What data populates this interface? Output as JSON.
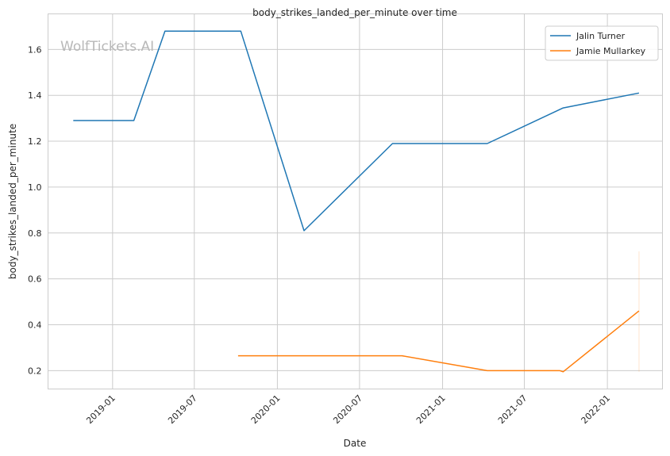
{
  "chart_data": {
    "type": "line",
    "title": "body_strikes_landed_per_minute over time",
    "xlabel": "Date",
    "ylabel": "body_strikes_landed_per_minute",
    "watermark": "WolfTickets.AI",
    "x_ticks": [
      "2019-01",
      "2019-07",
      "2020-01",
      "2020-07",
      "2021-01",
      "2021-07",
      "2022-01"
    ],
    "y_ticks": [
      0.2,
      0.4,
      0.6,
      0.8,
      1.0,
      1.2,
      1.4,
      1.6
    ],
    "xlim": [
      "2018-08-11",
      "2022-05-03"
    ],
    "ylim": [
      0.12,
      1.755
    ],
    "grid": true,
    "legend_position": "top-right",
    "series": [
      {
        "name": "Jalin Turner",
        "color": "#1f77b4",
        "points": [
          [
            "2018-10-06",
            1.29
          ],
          [
            "2019-02-17",
            1.29
          ],
          [
            "2019-04-27",
            1.68
          ],
          [
            "2019-10-12",
            1.68
          ],
          [
            "2020-02-29",
            0.81
          ],
          [
            "2020-09-12",
            1.19
          ],
          [
            "2021-04-10",
            1.19
          ],
          [
            "2021-09-25",
            1.345
          ],
          [
            "2022-03-12",
            1.41
          ]
        ]
      },
      {
        "name": "Jamie Mullarkey",
        "color": "#ff7f0e",
        "points": [
          [
            "2019-10-06",
            0.265
          ],
          [
            "2020-10-03",
            0.265
          ],
          [
            "2021-04-10",
            0.2
          ],
          [
            "2021-09-18",
            0.2
          ],
          [
            "2021-09-25",
            0.195
          ],
          [
            "2022-03-12",
            0.46
          ]
        ]
      }
    ]
  }
}
